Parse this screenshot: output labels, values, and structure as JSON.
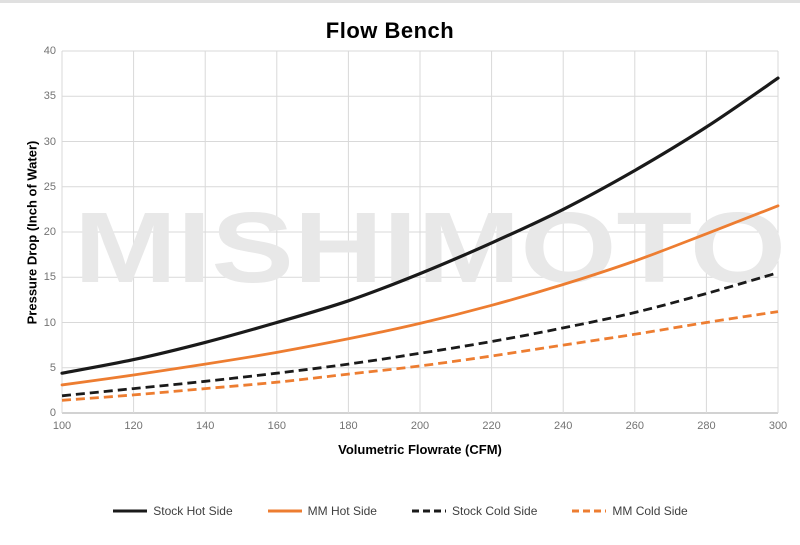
{
  "title": "Flow Bench",
  "watermark": "MISHIMOTO",
  "axes": {
    "x_label": "Volumetric Flowrate (CFM)",
    "y_label": "Pressure Drop (Inch of Water)"
  },
  "colors": {
    "black_series": "#1a1a1a",
    "orange_series": "#ED7D31",
    "gridline": "#d9d9d9",
    "bottom_axis": "#a6a6a6",
    "tick_label": "#737373",
    "watermark": "#e8e8e8",
    "legend_text": "#3f3f3f",
    "title_text": "#000000"
  },
  "chart_data": {
    "type": "line",
    "title": "Flow Bench",
    "xlabel": "Volumetric Flowrate (CFM)",
    "ylabel": "Pressure Drop (Inch of Water)",
    "xlim": [
      100,
      300
    ],
    "ylim": [
      0,
      40
    ],
    "x_ticks": [
      100,
      120,
      140,
      160,
      180,
      200,
      220,
      240,
      260,
      280,
      300
    ],
    "y_ticks": [
      0,
      5,
      10,
      15,
      20,
      25,
      30,
      35,
      40
    ],
    "grid": true,
    "legend_position": "bottom",
    "watermark": "MISHIMOTO",
    "x": [
      100,
      120,
      140,
      160,
      180,
      200,
      220,
      240,
      260,
      280,
      300
    ],
    "series": [
      {
        "name": "Stock Hot Side",
        "color": "#1a1a1a",
        "style": "solid",
        "width": 3.2,
        "values": [
          4.4,
          5.9,
          7.8,
          10.0,
          12.4,
          15.4,
          18.8,
          22.5,
          26.8,
          31.6,
          37.0
        ]
      },
      {
        "name": "MM Hot Side",
        "color": "#ED7D31",
        "style": "solid",
        "width": 2.8,
        "values": [
          3.1,
          4.2,
          5.4,
          6.7,
          8.2,
          9.9,
          11.9,
          14.2,
          16.8,
          19.8,
          22.9
        ]
      },
      {
        "name": "Stock Cold Side",
        "color": "#1a1a1a",
        "style": "dashed",
        "width": 2.8,
        "values": [
          1.9,
          2.7,
          3.5,
          4.4,
          5.4,
          6.6,
          7.9,
          9.4,
          11.1,
          13.2,
          15.5
        ]
      },
      {
        "name": "MM Cold Side",
        "color": "#ED7D31",
        "style": "dashed",
        "width": 2.8,
        "values": [
          1.4,
          2.0,
          2.7,
          3.4,
          4.3,
          5.2,
          6.3,
          7.5,
          8.7,
          10.0,
          11.2
        ]
      }
    ]
  }
}
